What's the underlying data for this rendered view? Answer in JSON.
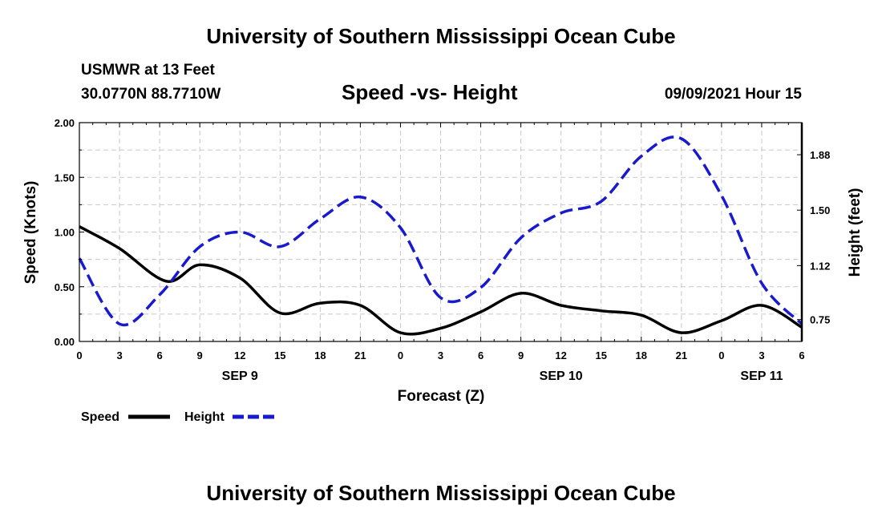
{
  "header": {
    "title": "University of Southern Mississippi Ocean Cube",
    "station": "USMWR at 13 Feet",
    "coords": "30.0770N  88.7710W",
    "subtitle": "Speed -vs- Height",
    "timestamp": "09/09/2021 Hour 15"
  },
  "footer": {
    "title": "University of Southern Mississippi Ocean Cube"
  },
  "colors": {
    "speed": "#000000",
    "height": "#1a1acd",
    "grid": "#c8c8c8"
  },
  "chart_data": {
    "type": "line",
    "title": "Speed -vs- Height",
    "xlabel": "Forecast (Z)",
    "ylabel": "Speed (Knots)",
    "y2label": "Height (feet)",
    "xlim": [
      0,
      54
    ],
    "ylim": [
      0,
      2.0
    ],
    "y2lim": [
      0.6,
      2.1
    ],
    "grid": true,
    "x_ticks": [
      0,
      3,
      6,
      9,
      12,
      15,
      18,
      21,
      24,
      27,
      30,
      33,
      36,
      39,
      42,
      45,
      48,
      51,
      54
    ],
    "x_tick_labels": [
      "0",
      "3",
      "6",
      "9",
      "12",
      "15",
      "18",
      "21",
      "0",
      "3",
      "6",
      "9",
      "12",
      "15",
      "18",
      "21",
      "0",
      "3",
      "6"
    ],
    "day_labels": [
      {
        "x": 12,
        "label": "SEP 9"
      },
      {
        "x": 36,
        "label": "SEP 10"
      },
      {
        "x": 51,
        "label": "SEP 11"
      }
    ],
    "y_ticks": [
      0,
      0.5,
      1.0,
      1.5,
      2.0
    ],
    "y_tick_labels": [
      "0.00",
      "0.50",
      "1.00",
      "1.50",
      "2.00"
    ],
    "y2_ticks": [
      0.75,
      1.12,
      1.5,
      1.88
    ],
    "y2_tick_labels": [
      "0.75",
      "1.12",
      "1.50",
      "1.88"
    ],
    "series": [
      {
        "name": "Speed",
        "axis": "left",
        "style": "solid",
        "x": [
          0,
          3,
          6.5,
          9,
          12,
          15,
          18,
          21,
          24,
          27,
          30,
          33,
          36,
          39,
          42,
          45,
          48,
          51,
          54
        ],
        "y": [
          1.05,
          0.85,
          0.55,
          0.7,
          0.58,
          0.26,
          0.35,
          0.33,
          0.08,
          0.12,
          0.27,
          0.44,
          0.33,
          0.28,
          0.24,
          0.08,
          0.19,
          0.33,
          0.13
        ]
      },
      {
        "name": "Height",
        "axis": "right",
        "style": "dashed",
        "x": [
          0,
          3,
          6,
          9,
          12,
          15,
          18,
          21,
          24,
          27,
          30,
          33,
          36,
          39,
          42,
          45,
          48,
          51,
          54
        ],
        "y": [
          1.17,
          0.72,
          0.92,
          1.25,
          1.35,
          1.25,
          1.44,
          1.59,
          1.38,
          0.9,
          0.97,
          1.31,
          1.48,
          1.56,
          1.87,
          1.99,
          1.6,
          1.0,
          0.72
        ]
      }
    ],
    "legend": [
      {
        "name": "Speed",
        "style": "solid"
      },
      {
        "name": "Height",
        "style": "dashed"
      }
    ]
  }
}
